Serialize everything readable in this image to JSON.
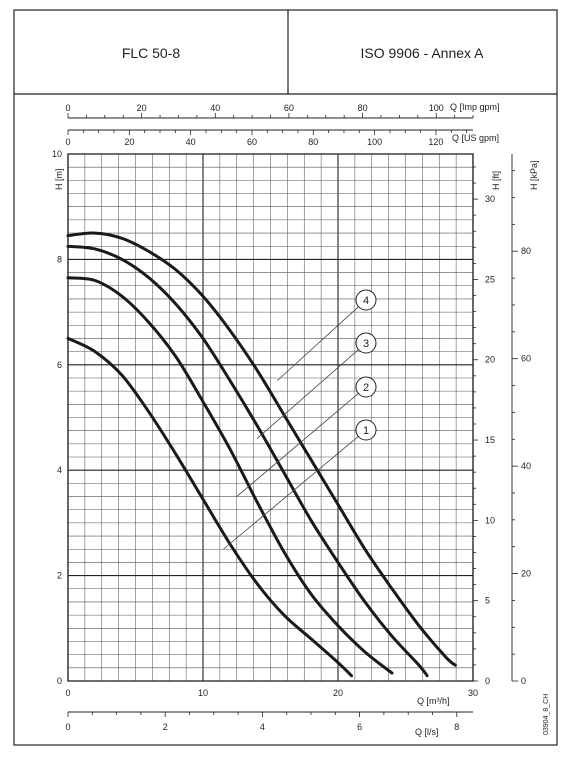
{
  "header": {
    "model": "FLC 50-8",
    "standard": "ISO 9906 - Annex A"
  },
  "figure_code": "03904_8_CH",
  "chart_data": {
    "type": "line",
    "x_axis": {
      "label": "Q [m³/h]",
      "range": [
        0,
        30
      ],
      "ticks": [
        0,
        10,
        20,
        30
      ]
    },
    "y_axis": {
      "label": "H [m]",
      "range": [
        0,
        10
      ],
      "ticks": [
        0,
        2,
        4,
        6,
        8,
        10
      ]
    },
    "secondary_axes": {
      "top_imp_gpm": {
        "label": "Q [Imp gpm]",
        "ticks": [
          0,
          20,
          40,
          60,
          80,
          100
        ]
      },
      "top_us_gpm": {
        "label": "Q [US gpm]",
        "ticks": [
          0,
          20,
          40,
          60,
          80,
          100,
          120
        ]
      },
      "bottom_ls": {
        "label": "Q [l/s]",
        "ticks": [
          0,
          2,
          4,
          6,
          8
        ]
      },
      "right_ft": {
        "label": "H [ft]",
        "ticks": [
          0,
          5,
          10,
          15,
          20,
          25,
          30
        ]
      },
      "right_kpa": {
        "label": "H [kPa]",
        "ticks": [
          0,
          20,
          40,
          60,
          80
        ]
      }
    },
    "grid": true,
    "series": [
      {
        "name": "1",
        "x": [
          0,
          2,
          4,
          6,
          8,
          10,
          12,
          14,
          16,
          18,
          20,
          21
        ],
        "y": [
          6.5,
          6.25,
          5.8,
          5.1,
          4.3,
          3.45,
          2.6,
          1.85,
          1.25,
          0.8,
          0.35,
          0.1
        ]
      },
      {
        "name": "2",
        "x": [
          0,
          2,
          4,
          6,
          8,
          10,
          12,
          14,
          16,
          18,
          20,
          22,
          24
        ],
        "y": [
          7.65,
          7.6,
          7.3,
          6.8,
          6.15,
          5.3,
          4.4,
          3.4,
          2.45,
          1.65,
          1.05,
          0.55,
          0.15
        ]
      },
      {
        "name": "3",
        "x": [
          0,
          2,
          4,
          6,
          8,
          10,
          12,
          14,
          16,
          18,
          20,
          22,
          24,
          26,
          26.6
        ],
        "y": [
          8.25,
          8.2,
          8.0,
          7.65,
          7.15,
          6.5,
          5.7,
          4.85,
          3.95,
          3.05,
          2.25,
          1.5,
          0.85,
          0.3,
          0.1
        ]
      },
      {
        "name": "4",
        "x": [
          0,
          2,
          4,
          6,
          8,
          10,
          12,
          14,
          16,
          18,
          20,
          22,
          24,
          26,
          28,
          28.7
        ],
        "y": [
          8.45,
          8.5,
          8.4,
          8.15,
          7.8,
          7.3,
          6.65,
          5.9,
          5.05,
          4.2,
          3.35,
          2.5,
          1.75,
          1.05,
          0.45,
          0.3
        ]
      }
    ],
    "annotations": [
      {
        "label": "1",
        "anchor_x": 11.5,
        "anchor_y": 2.5
      },
      {
        "label": "2",
        "anchor_x": 12.5,
        "anchor_y": 3.5
      },
      {
        "label": "3",
        "anchor_x": 14.0,
        "anchor_y": 4.6
      },
      {
        "label": "4",
        "anchor_x": 15.5,
        "anchor_y": 5.7
      }
    ]
  }
}
